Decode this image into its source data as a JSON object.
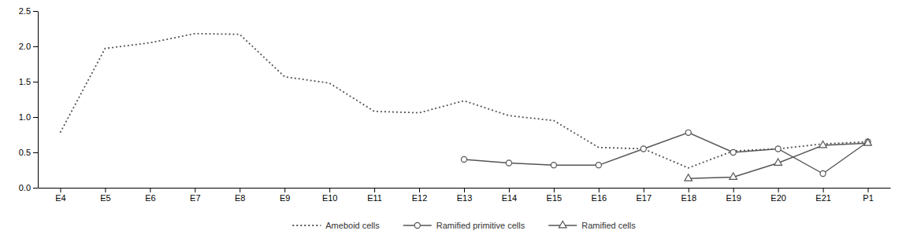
{
  "chart_data": {
    "type": "line",
    "categories": [
      "E4",
      "E5",
      "E6",
      "E7",
      "E8",
      "E9",
      "E10",
      "E11",
      "E12",
      "E13",
      "E14",
      "E15",
      "E16",
      "E17",
      "E18",
      "E19",
      "E20",
      "E21",
      "P1"
    ],
    "series": [
      {
        "name": "Ameboid cells",
        "color": "#555555",
        "line_style": "dotted",
        "marker": "none",
        "values": [
          0.78,
          1.97,
          2.05,
          2.18,
          2.17,
          1.57,
          1.48,
          1.08,
          1.06,
          1.23,
          1.02,
          0.95,
          0.57,
          0.55,
          0.28,
          0.52,
          0.55,
          0.62,
          0.65
        ]
      },
      {
        "name": "Ramified primitive cells",
        "color": "#555555",
        "line_style": "solid",
        "marker": "circle",
        "values": [
          null,
          null,
          null,
          null,
          null,
          null,
          null,
          null,
          null,
          0.4,
          0.35,
          0.32,
          0.32,
          0.55,
          0.78,
          0.5,
          0.55,
          0.2,
          0.65
        ]
      },
      {
        "name": "Ramified cells",
        "color": "#555555",
        "line_style": "solid",
        "marker": "triangle",
        "values": [
          null,
          null,
          null,
          null,
          null,
          null,
          null,
          null,
          null,
          null,
          null,
          null,
          null,
          null,
          0.13,
          0.15,
          0.35,
          0.6,
          0.63
        ]
      }
    ],
    "ylim": [
      0.0,
      2.5
    ],
    "yticks": [
      {
        "value": 0,
        "label": "0.0"
      },
      0.5,
      {
        "value": 1,
        "label": "1.0"
      },
      1.5,
      {
        "value": 2,
        "label": "2.0"
      },
      2.5
    ],
    "grid": false,
    "legend": "bottom"
  }
}
